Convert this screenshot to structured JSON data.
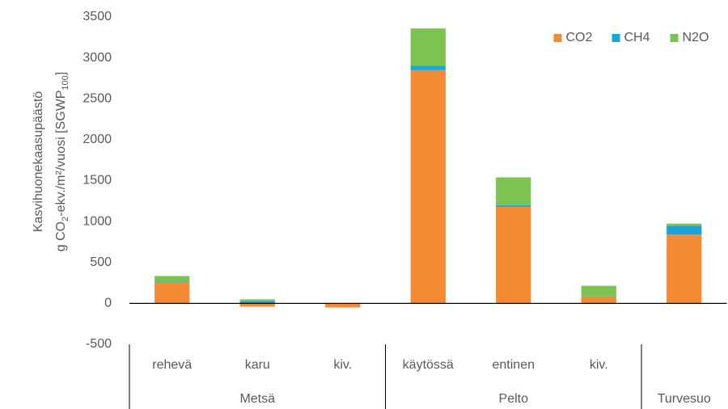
{
  "chart_data": {
    "type": "stacked_bar",
    "ylabel": "Kasvihuonekaasupäästö",
    "ylabel2_parts": [
      "g CO",
      "2",
      "-ekv./m²/vuosi [SGWP",
      "100",
      "]"
    ],
    "groups": [
      {
        "label": "Metsä",
        "categories": [
          "rehevä",
          "karu",
          "kiv."
        ]
      },
      {
        "label": "Pelto",
        "categories": [
          "käytössä",
          "entinen",
          "kiv."
        ]
      },
      {
        "label": "Turvesuo",
        "categories": [
          null
        ]
      }
    ],
    "series": [
      {
        "name": "CO2",
        "color": "#f58a34",
        "values": [
          260,
          -40,
          -50,
          2850,
          1180,
          80,
          840
        ]
      },
      {
        "name": "CH4",
        "color": "#1ca3dc",
        "values": [
          5,
          30,
          0,
          55,
          20,
          5,
          110
        ]
      },
      {
        "name": "N2O",
        "color": "#7dc351",
        "values": [
          70,
          20,
          5,
          455,
          340,
          130,
          25
        ]
      }
    ],
    "ylim": [
      -500,
      3500
    ],
    "yticks": [
      -500,
      0,
      500,
      1000,
      1500,
      2000,
      2500,
      3000,
      3500
    ],
    "grid": false,
    "legend": "top-right"
  }
}
